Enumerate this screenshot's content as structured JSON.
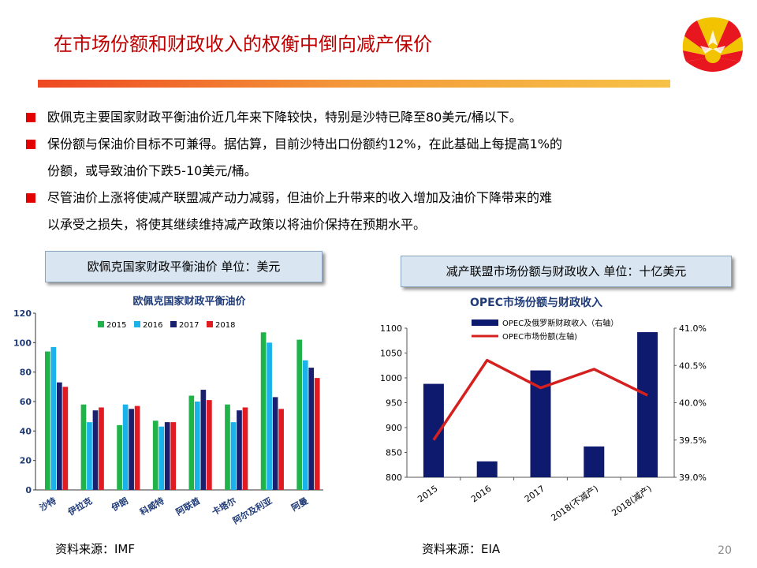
{
  "title": "在市场份额和财政收入的权衡中倒向减产保价",
  "bullets": [
    {
      "lines": [
        "欧佩克主要国家财政平衡油价近几年来下降较快，特别是沙特已降至80美元/桶以下。"
      ]
    },
    {
      "lines": [
        "保份额与保油价目标不可兼得。据估算，目前沙特出口份额约12%，在此基础上每提高1%的",
        "份额，或导致油价下跌5-10美元/桶。"
      ]
    },
    {
      "lines": [
        "尽管油价上涨将使减产联盟减产动力减弱，但油价上升带来的收入增加及油价下降带来的难",
        "以承受之损失，将使其继续维持减产政策以将油价保持在预期水平。"
      ]
    }
  ],
  "left_header": "欧佩克国家财政平衡油价  单位：美元",
  "right_header": "减产联盟市场份额与财政收入  单位：十亿美元",
  "left_source": "资料来源：IMF",
  "right_source": "资料来源：EIA",
  "page_number": "20",
  "colors": {
    "title": "#c00000",
    "bullet": "#e30000",
    "s2015": "#1fb34a",
    "s2016": "#1ab2ea",
    "s2017": "#1a1f6e",
    "s2018": "#e01b22",
    "opec_bar": "#0d1a6e",
    "opec_line": "#d4201f"
  },
  "chart_data": [
    {
      "type": "bar",
      "title": "欧佩克国家财政平衡油价",
      "categories": [
        "沙特",
        "伊拉克",
        "伊朗",
        "科威特",
        "阿联酋",
        "卡塔尔",
        "阿尔及利亚",
        "阿曼"
      ],
      "series": [
        {
          "name": "2015",
          "values": [
            94,
            58,
            44,
            47,
            64,
            58,
            107,
            102
          ]
        },
        {
          "name": "2016",
          "values": [
            97,
            46,
            58,
            43,
            60,
            46,
            100,
            88
          ]
        },
        {
          "name": "2017",
          "values": [
            73,
            54,
            55,
            46,
            68,
            54,
            63,
            83
          ]
        },
        {
          "name": "2018",
          "values": [
            70,
            56,
            57,
            46,
            61,
            56,
            55,
            76
          ]
        }
      ],
      "ylim": [
        0,
        120
      ],
      "yticks": [
        0,
        20,
        40,
        60,
        80,
        100,
        120
      ],
      "legend": "top",
      "xlabel": "",
      "ylabel": ""
    },
    {
      "type": "bar+line",
      "title": "OPEC市场份额与财政收入",
      "categories": [
        "2015",
        "2016",
        "2017",
        "2018(不减产)",
        "2018(减产)"
      ],
      "series": [
        {
          "name": "OPEC及俄罗斯财政收入（右轴）",
          "type": "bar",
          "axis": "left",
          "values": [
            988,
            832,
            1015,
            862,
            1092
          ]
        },
        {
          "name": "OPEC市场份额(左轴)",
          "type": "line",
          "axis": "right",
          "values": [
            39.5,
            40.57,
            40.2,
            40.45,
            40.1
          ]
        }
      ],
      "ylim_left": [
        800,
        1100
      ],
      "yticks_left": [
        800,
        850,
        900,
        950,
        1000,
        1050,
        1100
      ],
      "ylim_right": [
        39.0,
        41.0
      ],
      "yticks_right": [
        "39.0%",
        "39.5%",
        "40.0%",
        "40.5%",
        "41.0%"
      ],
      "legend": "top"
    }
  ]
}
